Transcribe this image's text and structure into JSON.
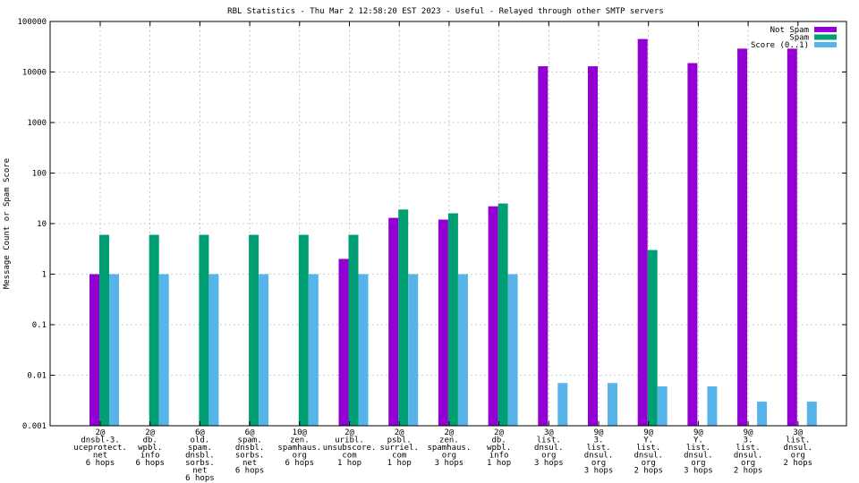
{
  "chart_data": {
    "type": "bar",
    "title": "RBL Statistics - Thu Mar  2 12:58:20 EST 2023 - Useful - Relayed through other SMTP servers",
    "xlabel": "",
    "ylabel": "Message Count or Spam Score",
    "yscale": "log",
    "ylim": [
      0.001,
      100000
    ],
    "grid": true,
    "legend_position": "top-right",
    "y_ticks": [
      "0.001",
      "0.01",
      "0.1",
      "1",
      "10",
      "100",
      "1000",
      "10000",
      "100000"
    ],
    "categories": [
      [
        "2@",
        "dnsbl-3.",
        "uceprotect.",
        "net",
        "6 hops"
      ],
      [
        "2@",
        "db.",
        "wpbl.",
        "info",
        "6 hops"
      ],
      [
        "6@",
        "old.",
        "spam.",
        "dnsbl.",
        "sorbs.",
        "net",
        "6 hops"
      ],
      [
        "6@",
        "spam.",
        "dnsbl.",
        "sorbs.",
        "net",
        "6 hops"
      ],
      [
        "10@",
        "zen.",
        "spamhaus.",
        "org",
        "6 hops"
      ],
      [
        "2@",
        "uribl.",
        "unsubscore.",
        "com",
        "1 hop"
      ],
      [
        "2@",
        "psbl.",
        "surriel.",
        "com",
        "1 hop"
      ],
      [
        "2@",
        "zen.",
        "spamhaus.",
        "org",
        "3 hops"
      ],
      [
        "2@",
        "db.",
        "wpbl.",
        "info",
        "1 hop"
      ],
      [
        "3@",
        "list.",
        "dnsul.",
        "org",
        "3 hops"
      ],
      [
        "9@",
        "3.",
        "list.",
        "dnsul.",
        "org",
        "3 hops"
      ],
      [
        "9@",
        "Y.",
        "list.",
        "dnsul.",
        "org",
        "2 hops"
      ],
      [
        "9@",
        "Y.",
        "list.",
        "dnsul.",
        "org",
        "3 hops"
      ],
      [
        "9@",
        "3.",
        "list.",
        "dnsul.",
        "org",
        "2 hops"
      ],
      [
        "3@",
        "list.",
        "dnsul.",
        "org",
        "2 hops"
      ]
    ],
    "series": [
      {
        "name": "Not Spam",
        "color": "#9400d3",
        "values": [
          1,
          null,
          null,
          null,
          null,
          2,
          13,
          12,
          22,
          13000,
          13000,
          45000,
          15000,
          29000,
          29000
        ]
      },
      {
        "name": "Spam",
        "color": "#009e73",
        "values": [
          6,
          6,
          6,
          6,
          6,
          6,
          19,
          16,
          25,
          null,
          null,
          3,
          null,
          null,
          null
        ]
      },
      {
        "name": "Score (0..1)",
        "color": "#56b4e9",
        "values": [
          1,
          1,
          1,
          1,
          1,
          1,
          1,
          1,
          1,
          0.007,
          0.007,
          0.006,
          0.006,
          0.003,
          0.003
        ]
      }
    ]
  }
}
